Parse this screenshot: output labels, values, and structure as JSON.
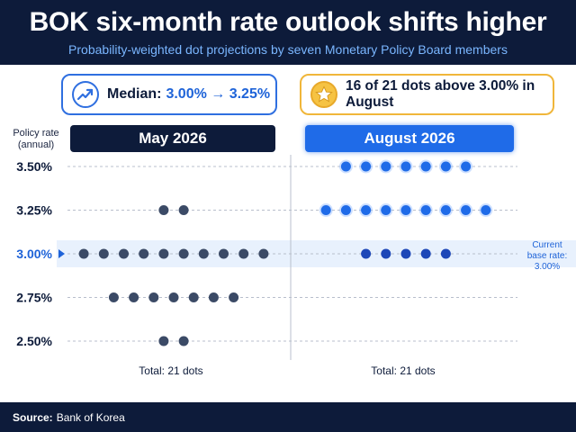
{
  "header": {
    "title": "BOK six-month rate outlook shifts higher",
    "subtitle": "Probability-weighted dot projections by seven Monetary Policy Board members"
  },
  "callouts": {
    "median_label": "Median:",
    "median_value": "3.00% → 3.25%",
    "dots_text": "16 of 21 dots above 3.00% in August",
    "median_icon": "trend-up-icon",
    "dots_icon": "star-icon"
  },
  "y_axis_title": "Policy rate (annual)",
  "current_base_rate_label": "Current base rate: 3.00%",
  "footer": {
    "source_label": "Source:",
    "source_value": "Bank of Korea"
  },
  "colors": {
    "navy": "#0d1b3a",
    "may_dot": "#3b4a66",
    "aug_dot": "#1f6be8",
    "aug_dot_current": "#1d47b8",
    "highlight": "#e8f1fd",
    "accent_blue": "#1e63d8",
    "accent_gold": "#f0b63a"
  },
  "chart_data": {
    "type": "scatter",
    "title": "BOK six-month rate outlook shifts higher",
    "ylabel": "Policy rate (annual)",
    "y_ticks": [
      "3.50%",
      "3.25%",
      "3.00%",
      "2.75%",
      "2.50%"
    ],
    "y_values": [
      3.5,
      3.25,
      3.0,
      2.75,
      2.5
    ],
    "highlight_y": 3.0,
    "panels": [
      {
        "name": "May 2026",
        "total": "Total: 21 dots",
        "counts": [
          {
            "rate": 3.5,
            "dots": 0
          },
          {
            "rate": 3.25,
            "dots": 2
          },
          {
            "rate": 3.0,
            "dots": 10
          },
          {
            "rate": 2.75,
            "dots": 7
          },
          {
            "rate": 2.5,
            "dots": 2
          }
        ]
      },
      {
        "name": "August 2026",
        "total": "Total: 21 dots",
        "counts": [
          {
            "rate": 3.5,
            "dots": 7
          },
          {
            "rate": 3.25,
            "dots": 9
          },
          {
            "rate": 3.0,
            "dots": 5
          },
          {
            "rate": 2.75,
            "dots": 0
          },
          {
            "rate": 2.5,
            "dots": 0
          }
        ]
      }
    ]
  }
}
